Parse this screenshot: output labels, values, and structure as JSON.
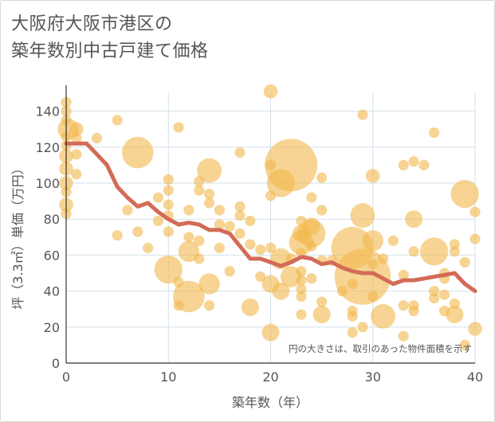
{
  "header": {
    "title_line1": "大阪府大阪市港区の",
    "title_line2": "築年数別中古戸建て価格"
  },
  "chart_data": {
    "type": "scatter",
    "title": "大阪府大阪市港区の 築年数別中古戸建て価格",
    "xlabel": "築年数（年）",
    "ylabel": "坪（3.3㎡）単価（万円）",
    "xlim": [
      0,
      40
    ],
    "ylim": [
      0,
      150
    ],
    "x_ticks": [
      0,
      10,
      20,
      30,
      40
    ],
    "y_ticks": [
      0,
      20,
      40,
      60,
      80,
      100,
      120,
      140
    ],
    "grid": true,
    "annotation": "円の大きさは、取引のあった物件面積を示す",
    "colors": {
      "bubble_fill": "#f2b84b",
      "bubble_opacity": 0.6,
      "trend_line": "#d36b57",
      "grid": "#d6e2ea",
      "axis_text": "#555555"
    },
    "series": [
      {
        "type": "line",
        "points": [
          [
            0,
            122
          ],
          [
            1,
            122
          ],
          [
            2,
            122
          ],
          [
            3,
            116
          ],
          [
            4,
            110
          ],
          [
            5,
            98
          ],
          [
            6,
            92
          ],
          [
            7,
            87
          ],
          [
            8,
            89
          ],
          [
            9,
            84
          ],
          [
            10,
            80
          ],
          [
            11,
            77
          ],
          [
            12,
            78
          ],
          [
            13,
            77
          ],
          [
            14,
            74
          ],
          [
            15,
            74
          ],
          [
            16,
            72
          ],
          [
            17,
            65
          ],
          [
            18,
            58
          ],
          [
            19,
            58
          ],
          [
            20,
            56
          ],
          [
            21,
            54
          ],
          [
            22,
            56
          ],
          [
            23,
            59
          ],
          [
            24,
            58
          ],
          [
            25,
            55
          ],
          [
            26,
            56
          ],
          [
            27,
            53
          ],
          [
            28,
            51
          ],
          [
            29,
            50
          ],
          [
            30,
            50
          ],
          [
            31,
            47
          ],
          [
            32,
            44
          ],
          [
            33,
            46
          ],
          [
            34,
            46
          ],
          [
            35,
            47
          ],
          [
            36,
            48
          ],
          [
            37,
            49
          ],
          [
            38,
            50
          ],
          [
            39,
            44
          ],
          [
            40,
            40
          ]
        ]
      },
      {
        "type": "bubble",
        "points": [
          [
            0,
            145,
            3
          ],
          [
            0,
            140,
            3
          ],
          [
            0,
            135,
            3
          ],
          [
            0.2,
            130,
            6
          ],
          [
            0,
            126,
            3
          ],
          [
            0,
            121,
            3
          ],
          [
            0,
            115,
            4
          ],
          [
            0,
            108,
            4
          ],
          [
            0,
            100,
            4
          ],
          [
            0,
            95,
            3
          ],
          [
            0,
            88,
            4
          ],
          [
            0,
            83,
            3
          ],
          [
            1,
            130,
            4
          ],
          [
            1,
            125,
            3
          ],
          [
            1,
            116,
            3
          ],
          [
            1,
            105,
            3
          ],
          [
            3,
            125,
            3
          ],
          [
            5,
            135,
            3
          ],
          [
            5,
            71,
            3
          ],
          [
            6,
            85,
            3
          ],
          [
            7,
            73,
            3
          ],
          [
            7,
            117,
            9
          ],
          [
            8,
            64,
            3
          ],
          [
            9,
            79,
            3
          ],
          [
            9,
            92,
            3
          ],
          [
            10,
            102,
            3
          ],
          [
            10,
            96,
            3
          ],
          [
            10,
            88,
            3
          ],
          [
            10,
            82,
            3
          ],
          [
            10,
            73,
            3
          ],
          [
            10,
            52,
            8
          ],
          [
            11,
            131,
            3
          ],
          [
            11,
            45,
            3
          ],
          [
            11,
            32,
            3
          ],
          [
            12,
            37,
            9
          ],
          [
            12,
            62,
            6
          ],
          [
            12,
            70,
            3
          ],
          [
            12,
            85,
            3
          ],
          [
            13,
            101,
            3
          ],
          [
            13,
            96,
            3
          ],
          [
            13,
            68,
            3
          ],
          [
            13,
            58,
            3
          ],
          [
            14,
            107,
            7
          ],
          [
            14,
            94,
            3
          ],
          [
            14,
            89,
            3
          ],
          [
            14,
            44,
            6
          ],
          [
            14,
            32,
            3
          ],
          [
            15,
            85,
            3
          ],
          [
            15,
            77,
            3
          ],
          [
            15,
            64,
            3
          ],
          [
            16,
            76,
            3
          ],
          [
            16,
            51,
            3
          ],
          [
            17,
            117,
            3
          ],
          [
            17,
            87,
            3
          ],
          [
            17,
            82,
            3
          ],
          [
            17,
            72,
            3
          ],
          [
            18,
            79,
            3
          ],
          [
            18,
            66,
            3
          ],
          [
            18,
            31,
            5
          ],
          [
            19,
            63,
            3
          ],
          [
            19,
            48,
            3
          ],
          [
            20,
            151,
            4
          ],
          [
            20,
            110,
            3
          ],
          [
            20,
            93,
            3
          ],
          [
            20,
            64,
            3
          ],
          [
            20,
            44,
            5
          ],
          [
            20,
            17,
            5
          ],
          [
            21,
            100,
            8
          ],
          [
            21,
            58,
            6
          ],
          [
            21,
            40,
            5
          ],
          [
            22,
            110,
            15
          ],
          [
            22,
            58,
            3
          ],
          [
            22,
            48,
            6
          ],
          [
            23,
            79,
            3
          ],
          [
            23,
            72,
            5
          ],
          [
            23,
            67,
            7
          ],
          [
            23,
            61,
            3
          ],
          [
            23,
            51,
            3
          ],
          [
            23,
            46,
            3
          ],
          [
            23,
            41,
            3
          ],
          [
            23,
            37,
            3
          ],
          [
            23,
            27,
            3
          ],
          [
            24,
            92,
            3
          ],
          [
            24,
            76,
            5
          ],
          [
            24,
            72,
            8
          ],
          [
            24,
            65,
            3
          ],
          [
            24,
            47,
            3
          ],
          [
            25,
            103,
            3
          ],
          [
            25,
            85,
            3
          ],
          [
            25,
            57,
            3
          ],
          [
            25,
            34,
            3
          ],
          [
            25,
            27,
            5
          ],
          [
            26,
            57,
            3
          ],
          [
            27,
            40,
            3
          ],
          [
            28,
            64,
            12
          ],
          [
            28,
            44,
            3
          ],
          [
            28,
            29,
            3
          ],
          [
            28,
            26,
            3
          ],
          [
            28,
            17,
            3
          ],
          [
            29,
            138,
            3
          ],
          [
            29,
            82,
            7
          ],
          [
            29,
            48,
            16
          ],
          [
            29,
            20,
            3
          ],
          [
            30,
            104,
            4
          ],
          [
            30,
            68,
            6
          ],
          [
            30,
            55,
            3
          ],
          [
            30,
            37,
            3
          ],
          [
            31,
            58,
            3
          ],
          [
            31,
            26,
            7
          ],
          [
            32,
            68,
            3
          ],
          [
            33,
            110,
            3
          ],
          [
            33,
            49,
            3
          ],
          [
            33,
            32,
            3
          ],
          [
            33,
            15,
            3
          ],
          [
            34,
            112,
            3
          ],
          [
            34,
            80,
            5
          ],
          [
            34,
            62,
            3
          ],
          [
            34,
            32,
            3
          ],
          [
            34,
            29,
            3
          ],
          [
            35,
            110,
            3
          ],
          [
            36,
            128,
            3
          ],
          [
            36,
            62,
            8
          ],
          [
            36,
            40,
            3
          ],
          [
            36,
            36,
            3
          ],
          [
            37,
            50,
            3
          ],
          [
            37,
            47,
            3
          ],
          [
            37,
            38,
            3
          ],
          [
            37,
            29,
            3
          ],
          [
            38,
            66,
            3
          ],
          [
            38,
            62,
            3
          ],
          [
            38,
            33,
            3
          ],
          [
            38,
            27,
            5
          ],
          [
            39,
            94,
            8
          ],
          [
            39,
            56,
            3
          ],
          [
            39,
            10,
            3
          ],
          [
            40,
            84,
            3
          ],
          [
            40,
            69,
            3
          ],
          [
            40,
            19,
            4
          ]
        ]
      }
    ]
  }
}
